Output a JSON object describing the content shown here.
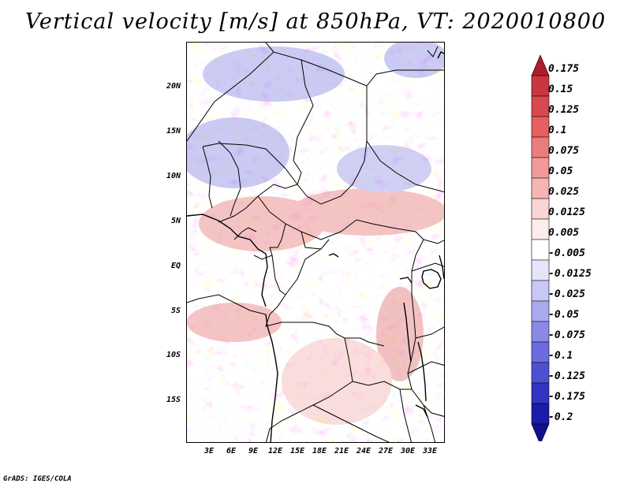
{
  "title": "Vertical velocity [m/s] at 850hPa, VT: 2020010800",
  "credit": "GrADS: IGES/COLA",
  "latitude_labels": [
    "20N",
    "15N",
    "10N",
    "5N",
    "EQ",
    "5S",
    "10S",
    "15S"
  ],
  "longitude_labels": [
    "3E",
    "6E",
    "9E",
    "12E",
    "15E",
    "18E",
    "21E",
    "24E",
    "27E",
    "30E",
    "33E"
  ],
  "colorbar": {
    "labels": [
      "0.175",
      "0.15",
      "0.125",
      "0.1",
      "0.075",
      "0.05",
      "0.025",
      "0.0125",
      "0.005",
      "-0.005",
      "-0.0125",
      "-0.025",
      "-0.05",
      "-0.075",
      "-0.1",
      "-0.125",
      "-0.175",
      "-0.2"
    ],
    "colors": [
      "#b01c2e",
      "#c83642",
      "#d9474f",
      "#e56161",
      "#ec7c7c",
      "#f29999",
      "#f6b5b5",
      "#fad3d3",
      "#fdecec",
      "#ffffff",
      "#e4e4fb",
      "#c8c8f5",
      "#a9a9ee",
      "#8a8ae6",
      "#6c6cde",
      "#4f4fd2",
      "#3434c2",
      "#1c1caa",
      "#10108c"
    ]
  }
}
